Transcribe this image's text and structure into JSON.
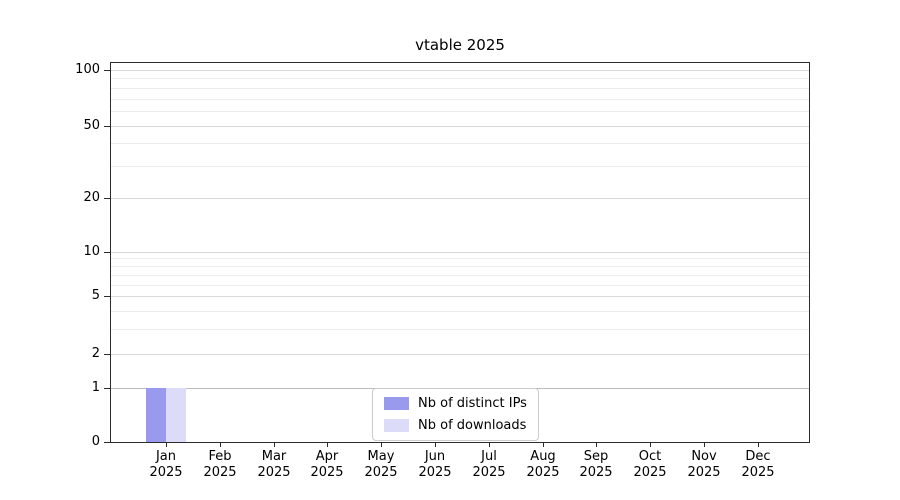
{
  "title": "vtable 2025",
  "chart_data": {
    "type": "bar",
    "title": "vtable 2025",
    "y_scale": "symlog",
    "ylim": [
      0,
      100
    ],
    "y_ticks": [
      0,
      1,
      2,
      5,
      10,
      20,
      50,
      100
    ],
    "grid": "both",
    "legend_position": "lower center",
    "x_months": [
      "Jan",
      "Feb",
      "Mar",
      "Apr",
      "May",
      "Jun",
      "Jul",
      "Aug",
      "Sep",
      "Oct",
      "Nov",
      "Dec"
    ],
    "x_year": "2025",
    "series": [
      {
        "name": "Nb of distinct IPs",
        "color": "#9999ee",
        "values": [
          1,
          0,
          0,
          0,
          0,
          0,
          0,
          0,
          0,
          0,
          0,
          0
        ]
      },
      {
        "name": "Nb of downloads",
        "color": "#dcdcf8",
        "values": [
          1,
          0,
          0,
          0,
          0,
          0,
          0,
          0,
          0,
          0,
          0,
          0
        ]
      }
    ]
  }
}
